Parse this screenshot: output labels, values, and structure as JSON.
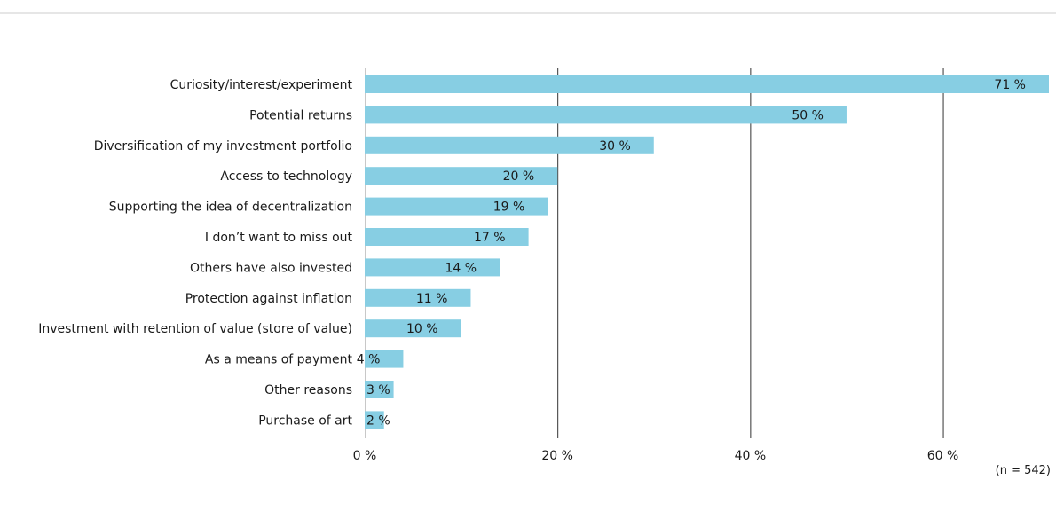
{
  "chart_data": {
    "type": "bar",
    "orientation": "horizontal",
    "categories": [
      "Curiosity/interest/experiment",
      "Potential returns",
      "Diversification of my investment portfolio",
      "Access to technology",
      "Supporting the idea of decentralization",
      "I don’t want to miss out",
      "Others have also invested",
      "Protection against inflation",
      "Investment with retention of value (store of value)",
      "As a means of payment",
      "Other reasons",
      "Purchase of art"
    ],
    "values": [
      71,
      50,
      30,
      20,
      19,
      17,
      14,
      11,
      10,
      4,
      3,
      2
    ],
    "value_labels": [
      "71 %",
      "50 %",
      "30 %",
      "20 %",
      "19 %",
      "17 %",
      "14 %",
      "11 %",
      "10 %",
      "4 %",
      "3 %",
      "2 %"
    ],
    "x_ticks": [
      0,
      20,
      40,
      60
    ],
    "x_tick_labels": [
      "0 %",
      "20 %",
      "40 %",
      "60 %"
    ],
    "xlim": [
      0,
      71
    ],
    "grid": "vertical",
    "bar_color": "#87cee3",
    "title": "",
    "xlabel": "",
    "ylabel": "",
    "note": "(n = 542)"
  }
}
